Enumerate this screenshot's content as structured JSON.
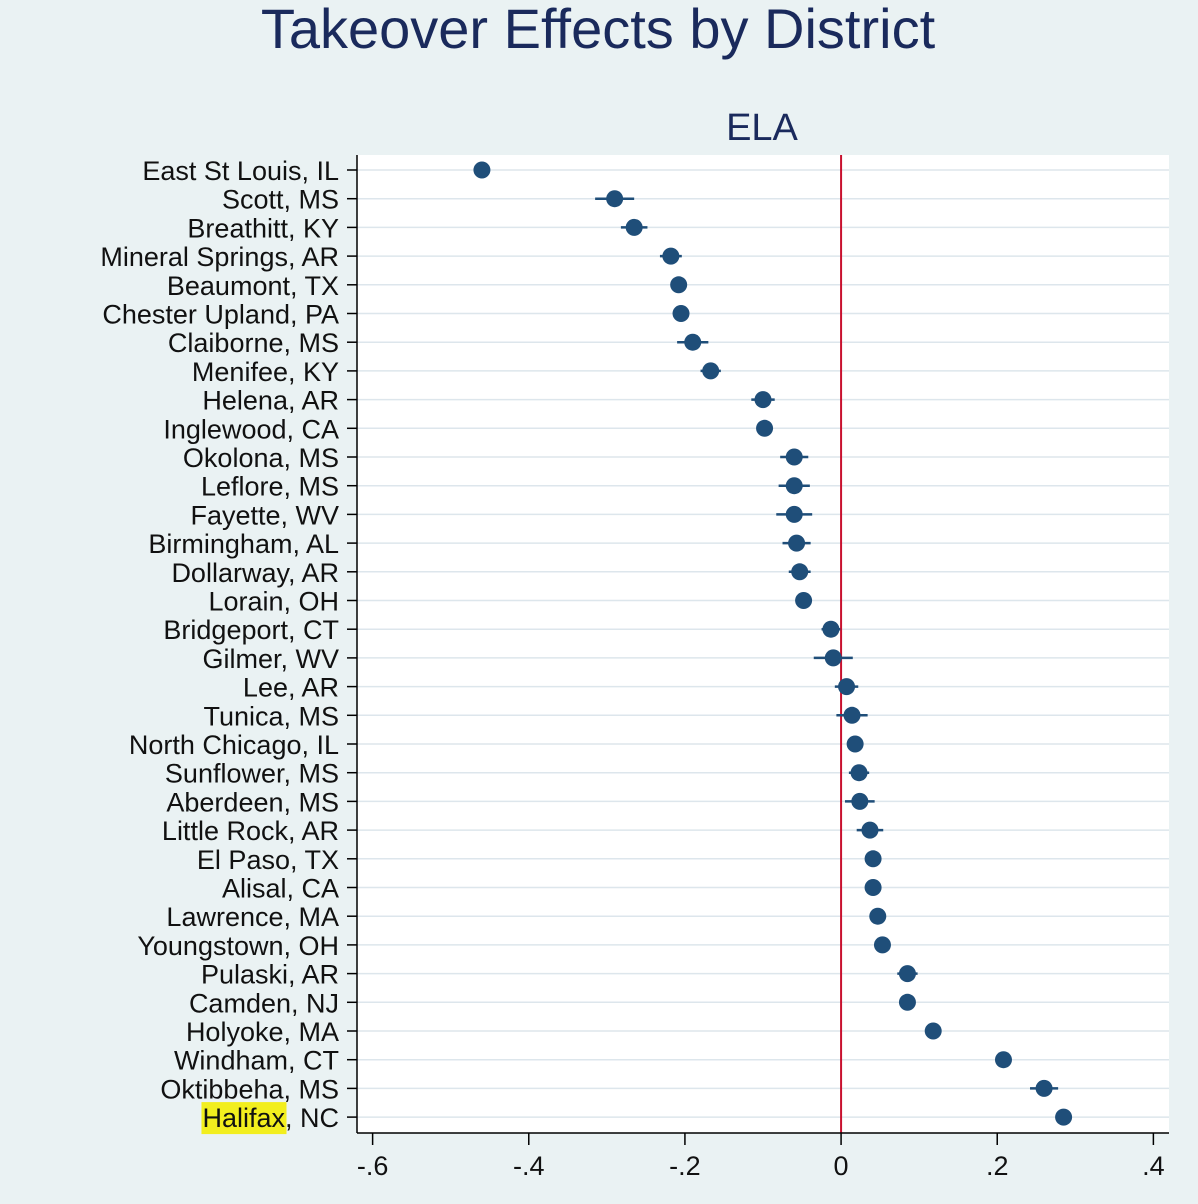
{
  "chart_data": {
    "type": "scatter",
    "title": "Takeover Effects by District",
    "panel_title": "ELA",
    "xlabel": "",
    "ylabel": "",
    "xlim": [
      -0.62,
      0.42
    ],
    "xticks": [
      -0.6,
      -0.4,
      -0.2,
      0,
      0.2,
      0.4
    ],
    "xtick_labels": [
      "-.6",
      "-.4",
      "-.2",
      "0",
      ".2",
      ".4"
    ],
    "reference_line": {
      "x": 0,
      "color": "#c8102e"
    },
    "highlight": {
      "text": "Halifax",
      "color": "#f2ee1e"
    },
    "colors": {
      "point": "#1f4e79",
      "ci": "#1f4e79",
      "grid": "#dde6ec",
      "background": "#eaf2f3",
      "plot_bg": "#ffffff"
    },
    "points": [
      {
        "label": "East St Louis, IL",
        "value": -0.46,
        "ci": [
          -0.47,
          -0.45
        ]
      },
      {
        "label": "Scott, MS",
        "value": -0.29,
        "ci": [
          -0.315,
          -0.265
        ]
      },
      {
        "label": "Breathitt, KY",
        "value": -0.265,
        "ci": [
          -0.282,
          -0.248
        ]
      },
      {
        "label": "Mineral Springs, AR",
        "value": -0.218,
        "ci": [
          -0.232,
          -0.204
        ]
      },
      {
        "label": "Beaumont, TX",
        "value": -0.208,
        "ci": [
          -0.214,
          -0.202
        ]
      },
      {
        "label": "Chester Upland, PA",
        "value": -0.205,
        "ci": [
          -0.211,
          -0.199
        ]
      },
      {
        "label": "Claiborne, MS",
        "value": -0.19,
        "ci": [
          -0.21,
          -0.17
        ]
      },
      {
        "label": "Menifee, KY",
        "value": -0.167,
        "ci": [
          -0.18,
          -0.154
        ]
      },
      {
        "label": "Helena, AR",
        "value": -0.1,
        "ci": [
          -0.115,
          -0.085
        ]
      },
      {
        "label": "Inglewood, CA",
        "value": -0.098,
        "ci": [
          -0.104,
          -0.092
        ]
      },
      {
        "label": "Okolona, MS",
        "value": -0.06,
        "ci": [
          -0.078,
          -0.042
        ]
      },
      {
        "label": "Leflore, MS",
        "value": -0.06,
        "ci": [
          -0.08,
          -0.04
        ]
      },
      {
        "label": "Fayette, WV",
        "value": -0.06,
        "ci": [
          -0.083,
          -0.037
        ]
      },
      {
        "label": "Birmingham, AL",
        "value": -0.057,
        "ci": [
          -0.075,
          -0.039
        ]
      },
      {
        "label": "Dollarway, AR",
        "value": -0.053,
        "ci": [
          -0.067,
          -0.039
        ]
      },
      {
        "label": "Lorain, OH",
        "value": -0.048,
        "ci": [
          -0.054,
          -0.042
        ]
      },
      {
        "label": "Bridgeport, CT",
        "value": -0.013,
        "ci": [
          -0.025,
          -0.001
        ]
      },
      {
        "label": "Gilmer, WV",
        "value": -0.01,
        "ci": [
          -0.035,
          0.015
        ]
      },
      {
        "label": "Lee, AR",
        "value": 0.007,
        "ci": [
          -0.008,
          0.022
        ]
      },
      {
        "label": "Tunica, MS",
        "value": 0.014,
        "ci": [
          -0.006,
          0.034
        ]
      },
      {
        "label": "North Chicago, IL",
        "value": 0.018,
        "ci": [
          0.012,
          0.024
        ]
      },
      {
        "label": "Sunflower, MS",
        "value": 0.023,
        "ci": [
          0.01,
          0.036
        ]
      },
      {
        "label": "Aberdeen, MS",
        "value": 0.024,
        "ci": [
          0.005,
          0.043
        ]
      },
      {
        "label": "Little Rock, AR",
        "value": 0.037,
        "ci": [
          0.02,
          0.054
        ]
      },
      {
        "label": "El Paso, TX",
        "value": 0.041,
        "ci": [
          0.035,
          0.047
        ]
      },
      {
        "label": "Alisal, CA",
        "value": 0.041,
        "ci": [
          0.035,
          0.047
        ]
      },
      {
        "label": "Lawrence, MA",
        "value": 0.047,
        "ci": [
          0.041,
          0.053
        ]
      },
      {
        "label": "Youngstown, OH",
        "value": 0.053,
        "ci": [
          0.047,
          0.059
        ]
      },
      {
        "label": "Pulaski, AR",
        "value": 0.085,
        "ci": [
          0.072,
          0.098
        ]
      },
      {
        "label": "Camden, NJ",
        "value": 0.085,
        "ci": [
          0.079,
          0.091
        ]
      },
      {
        "label": "Holyoke, MA",
        "value": 0.118,
        "ci": [
          0.108,
          0.128
        ]
      },
      {
        "label": "Windham, CT",
        "value": 0.208,
        "ci": [
          0.202,
          0.214
        ]
      },
      {
        "label": "Oktibbeha, MS",
        "value": 0.26,
        "ci": [
          0.242,
          0.278
        ]
      },
      {
        "label": "Halifax, NC",
        "value": 0.285,
        "ci": [
          0.277,
          0.293
        ]
      }
    ]
  }
}
